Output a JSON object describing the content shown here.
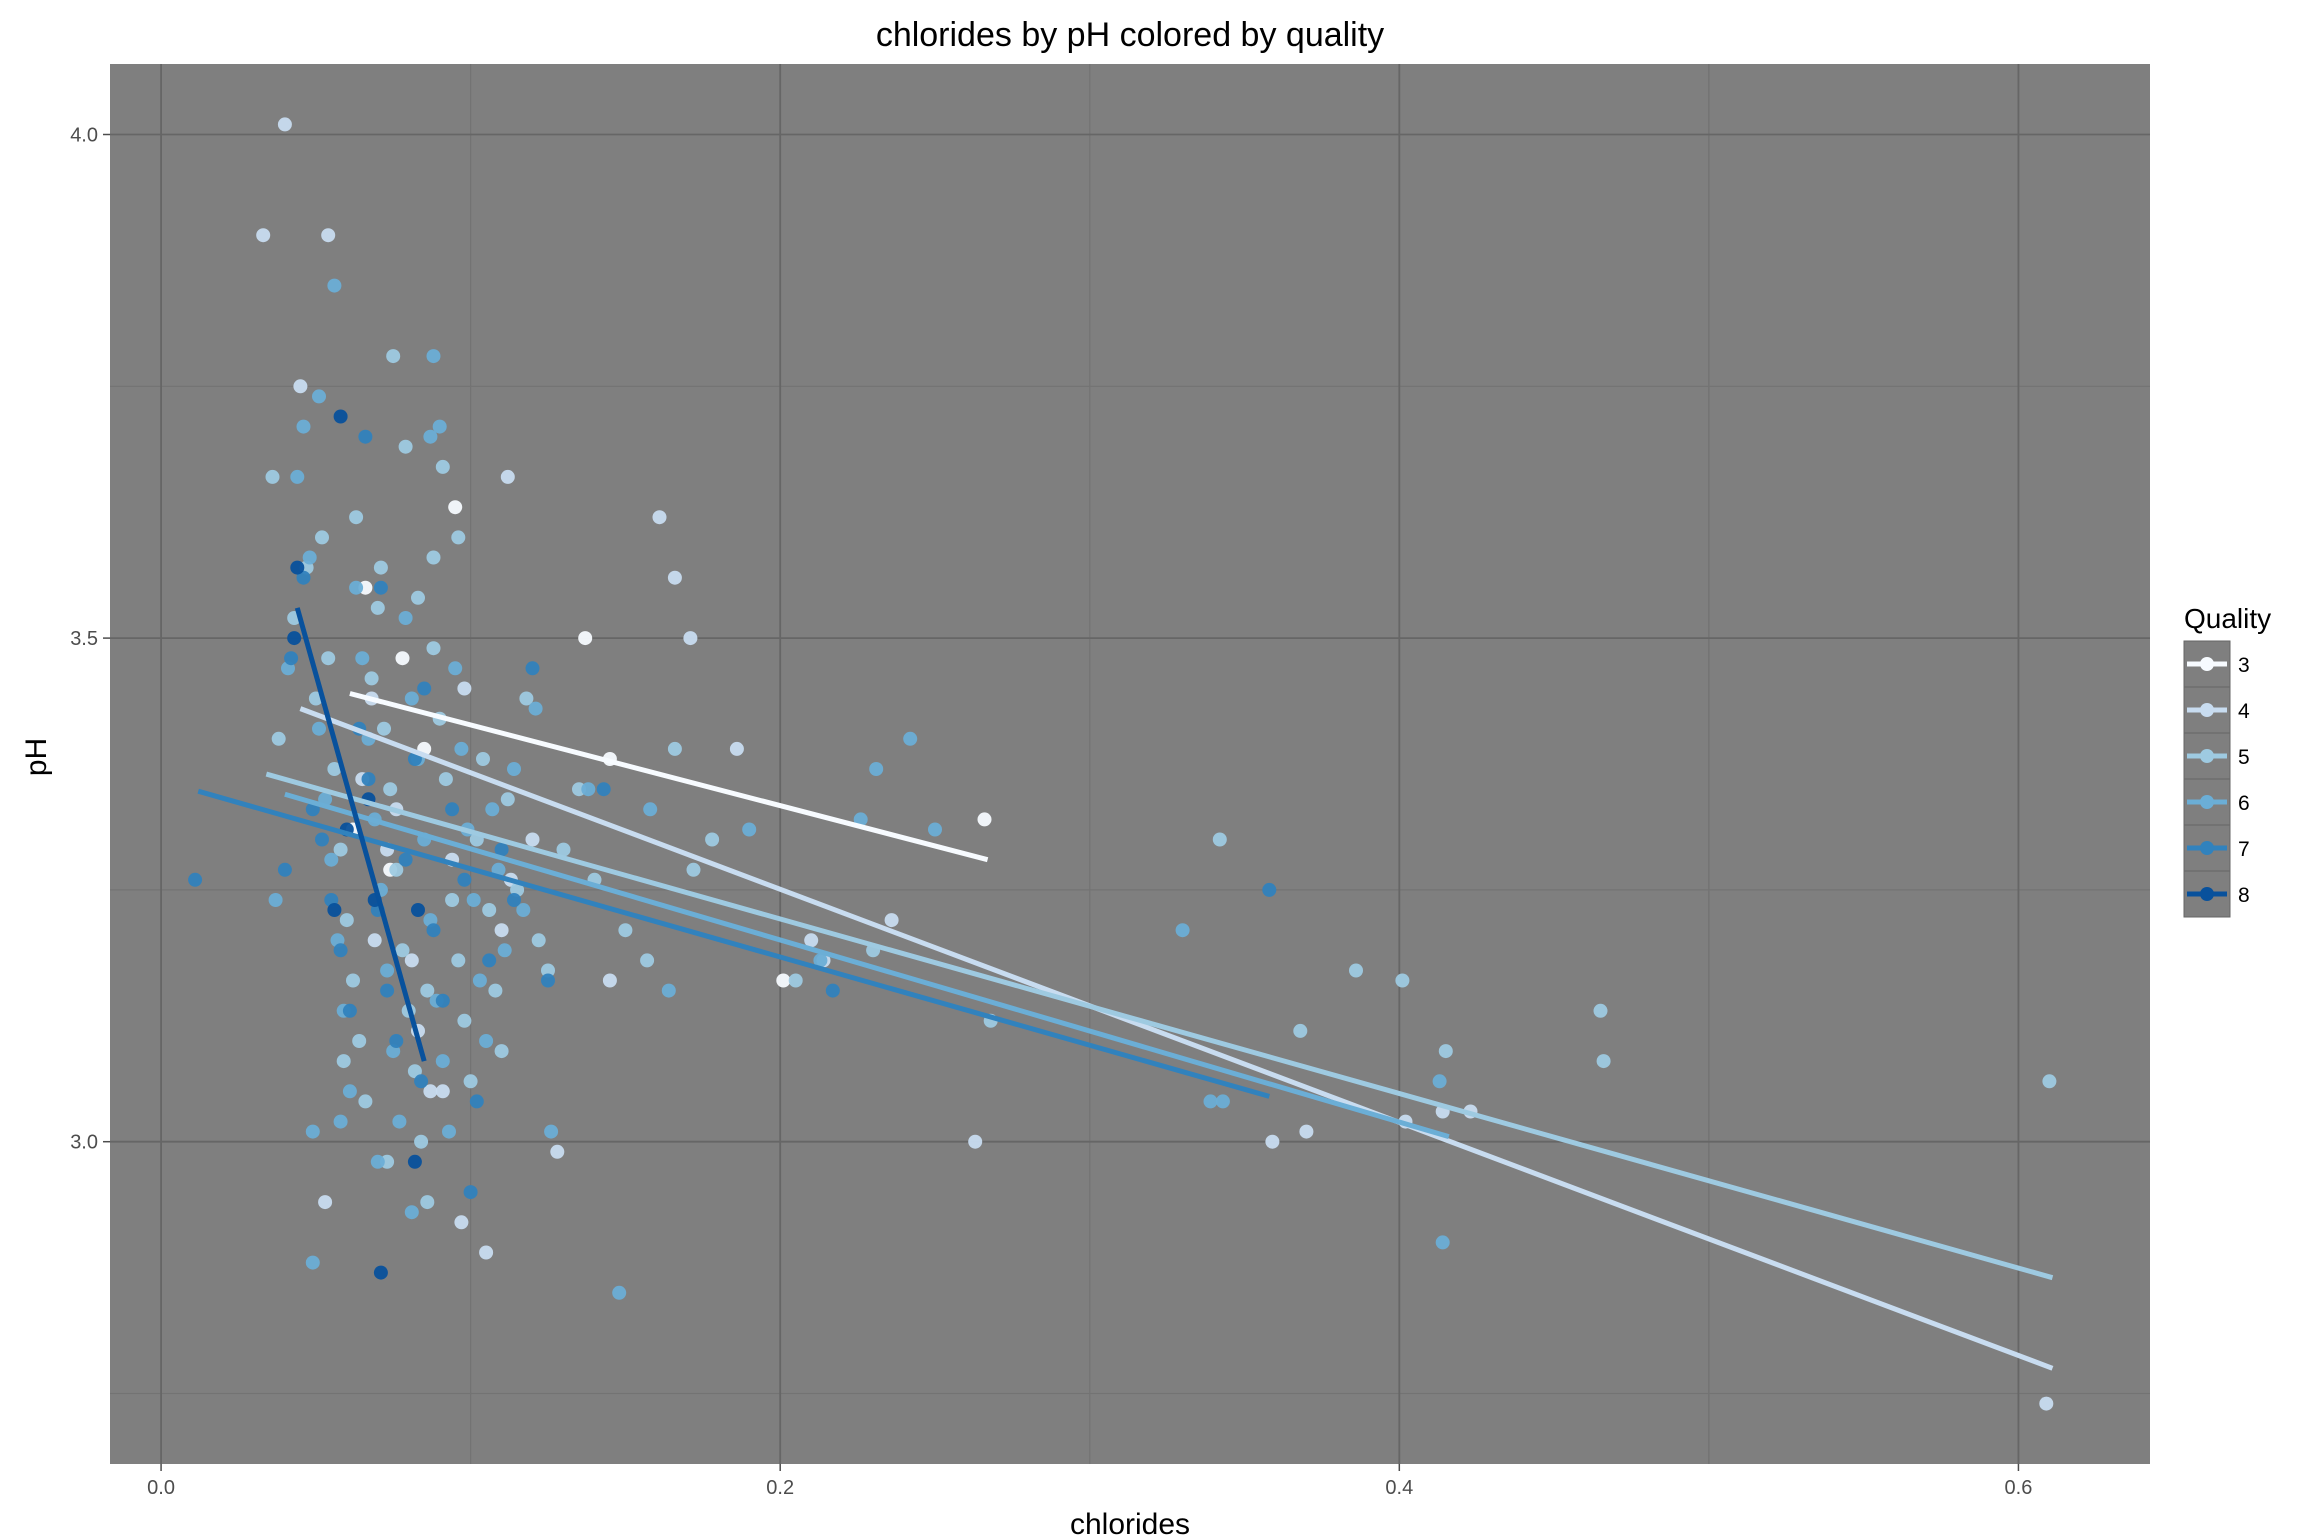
{
  "chart_data": {
    "type": "scatter",
    "title": "chlorides by pH colored by quality",
    "xlabel": "chlorides",
    "ylabel": "pH",
    "xlim": [
      -0.0165,
      0.6425
    ],
    "ylim": [
      2.68,
      4.07
    ],
    "x_ticks": [
      0.0,
      0.2,
      0.4,
      0.6
    ],
    "x_tick_labels": [
      "0.0",
      "0.2",
      "0.4",
      "0.6"
    ],
    "y_ticks": [
      3.0,
      3.5,
      4.0
    ],
    "y_tick_labels": [
      "3.0",
      "3.5",
      "4.0"
    ],
    "grid": true,
    "background": "#7f7f7f",
    "legend": {
      "title": "Quality",
      "position": "right",
      "entries": [
        "3",
        "4",
        "5",
        "6",
        "7",
        "8"
      ]
    },
    "series": [
      {
        "name": "3",
        "color": "#f7fbff",
        "trend": {
          "x": [
            0.061,
            0.267
          ],
          "y": [
            3.445,
            3.28
          ]
        },
        "points": [
          [
            0.066,
            3.55
          ],
          [
            0.078,
            3.48
          ],
          [
            0.085,
            3.39
          ],
          [
            0.095,
            3.63
          ],
          [
            0.137,
            3.5
          ],
          [
            0.145,
            3.38
          ],
          [
            0.201,
            3.16
          ],
          [
            0.266,
            3.32
          ],
          [
            0.062,
            3.31
          ],
          [
            0.074,
            3.27
          ]
        ]
      },
      {
        "name": "4",
        "color": "#c8dcf0",
        "trend": {
          "x": [
            0.045,
            0.611
          ],
          "y": [
            3.43,
            2.775
          ]
        },
        "points": [
          [
            0.04,
            4.01
          ],
          [
            0.054,
            3.9
          ],
          [
            0.045,
            3.75
          ],
          [
            0.033,
            3.9
          ],
          [
            0.112,
            3.66
          ],
          [
            0.161,
            3.62
          ],
          [
            0.171,
            3.5
          ],
          [
            0.166,
            3.56
          ],
          [
            0.186,
            3.39
          ],
          [
            0.236,
            3.22
          ],
          [
            0.263,
            3.0
          ],
          [
            0.359,
            3.0
          ],
          [
            0.37,
            3.01
          ],
          [
            0.402,
            3.02
          ],
          [
            0.414,
            3.03
          ],
          [
            0.423,
            3.03
          ],
          [
            0.609,
            2.74
          ],
          [
            0.053,
            2.94
          ],
          [
            0.097,
            2.92
          ],
          [
            0.105,
            2.89
          ],
          [
            0.091,
            3.05
          ],
          [
            0.083,
            3.11
          ],
          [
            0.076,
            3.33
          ],
          [
            0.068,
            3.44
          ],
          [
            0.094,
            3.28
          ],
          [
            0.11,
            3.21
          ],
          [
            0.128,
            2.99
          ],
          [
            0.145,
            3.16
          ],
          [
            0.214,
            3.18
          ],
          [
            0.21,
            3.2
          ],
          [
            0.069,
            3.2
          ],
          [
            0.081,
            3.18
          ],
          [
            0.073,
            3.29
          ],
          [
            0.065,
            3.36
          ],
          [
            0.098,
            3.45
          ],
          [
            0.087,
            3.05
          ],
          [
            0.12,
            3.3
          ],
          [
            0.113,
            3.26
          ]
        ]
      },
      {
        "name": "5",
        "color": "#9ecae1",
        "trend": {
          "x": [
            0.034,
            0.611
          ],
          "y": [
            3.365,
            2.865
          ]
        },
        "points": [
          [
            0.036,
            3.66
          ],
          [
            0.038,
            3.4
          ],
          [
            0.043,
            3.52
          ],
          [
            0.047,
            3.57
          ],
          [
            0.05,
            3.44
          ],
          [
            0.052,
            3.6
          ],
          [
            0.056,
            3.37
          ],
          [
            0.058,
            3.29
          ],
          [
            0.06,
            3.22
          ],
          [
            0.062,
            3.16
          ],
          [
            0.064,
            3.1
          ],
          [
            0.066,
            3.04
          ],
          [
            0.068,
            3.46
          ],
          [
            0.07,
            3.53
          ],
          [
            0.072,
            3.41
          ],
          [
            0.074,
            3.35
          ],
          [
            0.076,
            3.27
          ],
          [
            0.078,
            3.19
          ],
          [
            0.08,
            3.13
          ],
          [
            0.082,
            3.07
          ],
          [
            0.084,
            3.0
          ],
          [
            0.086,
            2.94
          ],
          [
            0.088,
            3.49
          ],
          [
            0.09,
            3.42
          ],
          [
            0.092,
            3.36
          ],
          [
            0.094,
            3.24
          ],
          [
            0.096,
            3.18
          ],
          [
            0.098,
            3.12
          ],
          [
            0.1,
            3.06
          ],
          [
            0.102,
            3.3
          ],
          [
            0.104,
            3.38
          ],
          [
            0.106,
            3.23
          ],
          [
            0.108,
            3.15
          ],
          [
            0.11,
            3.09
          ],
          [
            0.112,
            3.34
          ],
          [
            0.115,
            3.25
          ],
          [
            0.118,
            3.44
          ],
          [
            0.122,
            3.2
          ],
          [
            0.125,
            3.17
          ],
          [
            0.13,
            3.29
          ],
          [
            0.135,
            3.35
          ],
          [
            0.14,
            3.26
          ],
          [
            0.15,
            3.21
          ],
          [
            0.157,
            3.18
          ],
          [
            0.166,
            3.39
          ],
          [
            0.172,
            3.27
          ],
          [
            0.178,
            3.3
          ],
          [
            0.205,
            3.16
          ],
          [
            0.23,
            3.19
          ],
          [
            0.268,
            3.12
          ],
          [
            0.342,
            3.3
          ],
          [
            0.368,
            3.11
          ],
          [
            0.386,
            3.17
          ],
          [
            0.401,
            3.16
          ],
          [
            0.415,
            3.09
          ],
          [
            0.466,
            3.08
          ],
          [
            0.465,
            3.13
          ],
          [
            0.61,
            3.06
          ],
          [
            0.075,
            3.78
          ],
          [
            0.079,
            3.69
          ],
          [
            0.088,
            3.58
          ],
          [
            0.091,
            3.67
          ],
          [
            0.063,
            3.62
          ],
          [
            0.071,
            3.57
          ],
          [
            0.083,
            3.54
          ],
          [
            0.096,
            3.6
          ],
          [
            0.054,
            3.48
          ],
          [
            0.086,
            3.15
          ],
          [
            0.073,
            2.98
          ],
          [
            0.059,
            3.08
          ]
        ]
      },
      {
        "name": "6",
        "color": "#6baed6",
        "trend": {
          "x": [
            0.04,
            0.416
          ],
          "y": [
            3.345,
            3.005
          ]
        },
        "points": [
          [
            0.037,
            3.24
          ],
          [
            0.041,
            3.47
          ],
          [
            0.044,
            3.66
          ],
          [
            0.046,
            3.71
          ],
          [
            0.048,
            3.58
          ],
          [
            0.051,
            3.41
          ],
          [
            0.053,
            3.34
          ],
          [
            0.055,
            3.28
          ],
          [
            0.057,
            3.2
          ],
          [
            0.059,
            3.13
          ],
          [
            0.061,
            3.05
          ],
          [
            0.063,
            3.55
          ],
          [
            0.065,
            3.48
          ],
          [
            0.067,
            3.4
          ],
          [
            0.069,
            3.32
          ],
          [
            0.071,
            3.25
          ],
          [
            0.073,
            3.17
          ],
          [
            0.075,
            3.09
          ],
          [
            0.077,
            3.02
          ],
          [
            0.079,
            3.52
          ],
          [
            0.081,
            3.44
          ],
          [
            0.083,
            3.38
          ],
          [
            0.085,
            3.3
          ],
          [
            0.087,
            3.22
          ],
          [
            0.089,
            3.14
          ],
          [
            0.091,
            3.08
          ],
          [
            0.093,
            3.01
          ],
          [
            0.095,
            3.47
          ],
          [
            0.097,
            3.39
          ],
          [
            0.099,
            3.31
          ],
          [
            0.101,
            3.24
          ],
          [
            0.103,
            3.16
          ],
          [
            0.105,
            3.1
          ],
          [
            0.107,
            3.33
          ],
          [
            0.109,
            3.27
          ],
          [
            0.111,
            3.19
          ],
          [
            0.114,
            3.37
          ],
          [
            0.117,
            3.23
          ],
          [
            0.121,
            3.43
          ],
          [
            0.126,
            3.01
          ],
          [
            0.138,
            3.35
          ],
          [
            0.148,
            2.85
          ],
          [
            0.158,
            3.33
          ],
          [
            0.164,
            3.15
          ],
          [
            0.19,
            3.31
          ],
          [
            0.226,
            3.32
          ],
          [
            0.231,
            3.37
          ],
          [
            0.242,
            3.4
          ],
          [
            0.25,
            3.31
          ],
          [
            0.213,
            3.18
          ],
          [
            0.33,
            3.21
          ],
          [
            0.339,
            3.04
          ],
          [
            0.343,
            3.04
          ],
          [
            0.413,
            3.06
          ],
          [
            0.414,
            2.9
          ],
          [
            0.049,
            2.88
          ],
          [
            0.081,
            2.93
          ],
          [
            0.049,
            3.01
          ],
          [
            0.058,
            3.02
          ],
          [
            0.07,
            2.98
          ],
          [
            0.088,
            3.78
          ],
          [
            0.09,
            3.71
          ],
          [
            0.056,
            3.85
          ],
          [
            0.087,
            3.7
          ],
          [
            0.051,
            3.74
          ]
        ]
      },
      {
        "name": "7",
        "color": "#3182bd",
        "trend": {
          "x": [
            0.012,
            0.358
          ],
          "y": [
            3.348,
            3.045
          ]
        },
        "points": [
          [
            0.011,
            3.26
          ],
          [
            0.04,
            3.27
          ],
          [
            0.042,
            3.48
          ],
          [
            0.046,
            3.56
          ],
          [
            0.049,
            3.33
          ],
          [
            0.052,
            3.3
          ],
          [
            0.055,
            3.24
          ],
          [
            0.058,
            3.19
          ],
          [
            0.061,
            3.13
          ],
          [
            0.064,
            3.41
          ],
          [
            0.067,
            3.36
          ],
          [
            0.07,
            3.23
          ],
          [
            0.073,
            3.15
          ],
          [
            0.076,
            3.1
          ],
          [
            0.079,
            3.28
          ],
          [
            0.082,
            3.38
          ],
          [
            0.085,
            3.45
          ],
          [
            0.088,
            3.21
          ],
          [
            0.091,
            3.14
          ],
          [
            0.094,
            3.33
          ],
          [
            0.098,
            3.26
          ],
          [
            0.102,
            3.04
          ],
          [
            0.106,
            3.18
          ],
          [
            0.11,
            3.29
          ],
          [
            0.114,
            3.24
          ],
          [
            0.12,
            3.47
          ],
          [
            0.125,
            3.16
          ],
          [
            0.143,
            3.35
          ],
          [
            0.217,
            3.15
          ],
          [
            0.358,
            3.25
          ],
          [
            0.071,
            3.55
          ],
          [
            0.084,
            3.06
          ],
          [
            0.1,
            2.95
          ],
          [
            0.066,
            3.7
          ]
        ]
      },
      {
        "name": "8",
        "color": "#08519c",
        "trend": {
          "x": [
            0.044,
            0.085
          ],
          "y": [
            3.53,
            3.08
          ]
        },
        "points": [
          [
            0.044,
            3.57
          ],
          [
            0.043,
            3.5
          ],
          [
            0.058,
            3.72
          ],
          [
            0.06,
            3.31
          ],
          [
            0.056,
            3.23
          ],
          [
            0.069,
            3.24
          ],
          [
            0.083,
            3.23
          ],
          [
            0.071,
            2.87
          ],
          [
            0.082,
            2.98
          ],
          [
            0.067,
            3.34
          ]
        ]
      }
    ]
  }
}
